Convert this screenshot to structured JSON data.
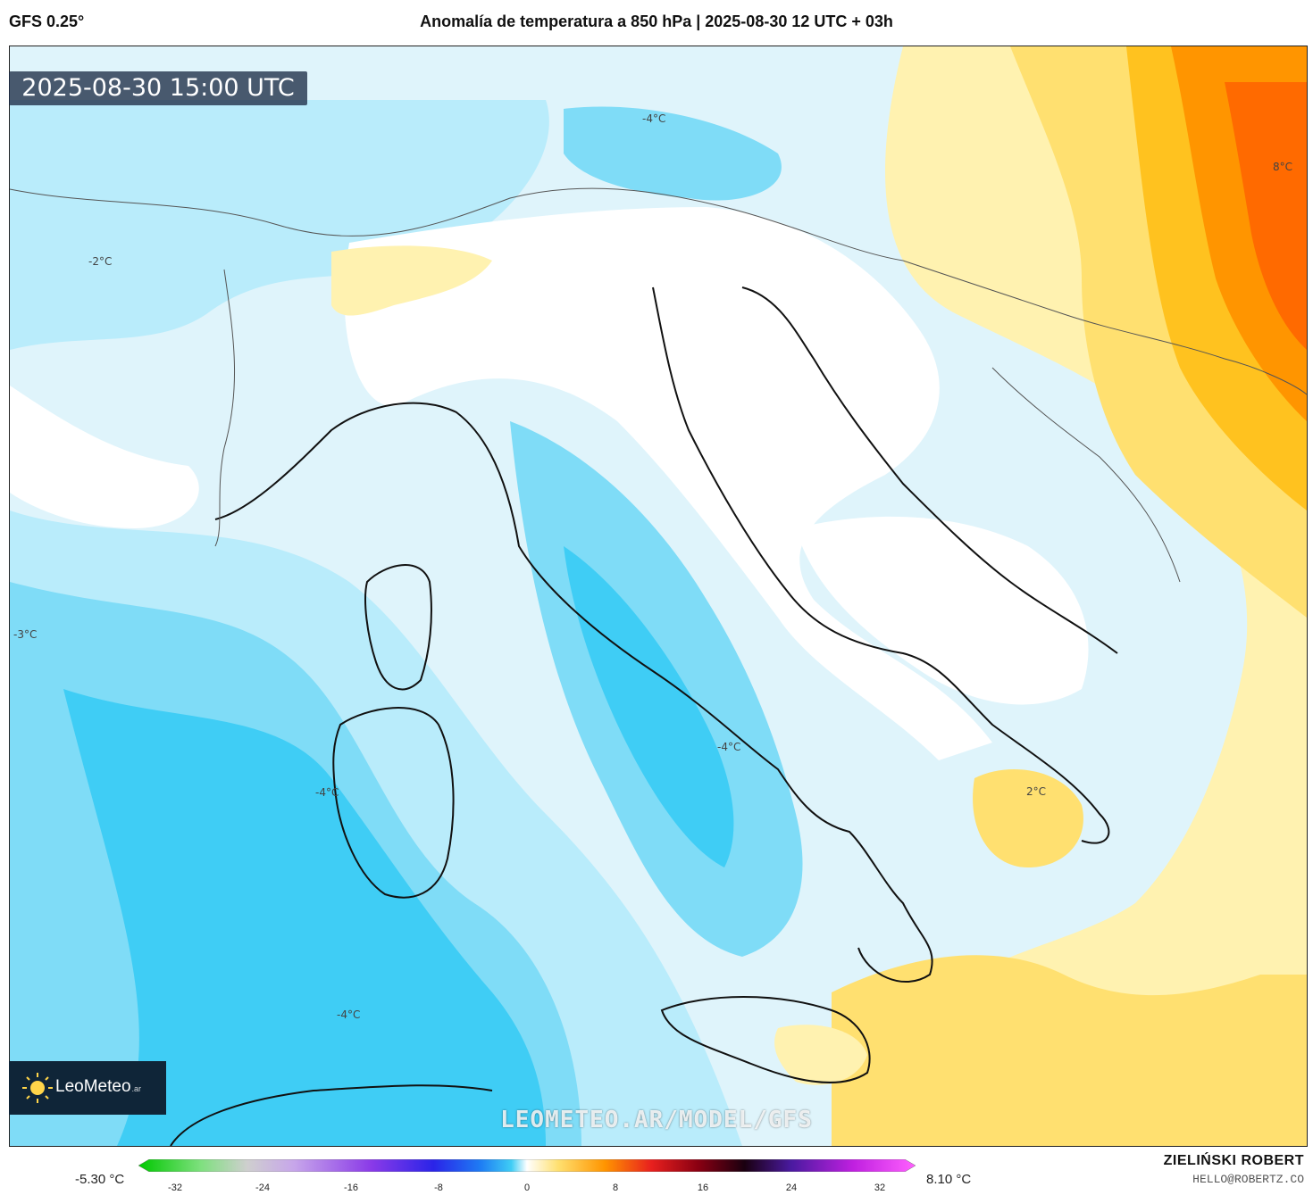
{
  "header": {
    "model": "GFS 0.25°",
    "title": "Anomalía de temperatura a 850 hPa | 2025-08-30 12 UTC + 03h"
  },
  "timestamp": "2025-08-30 15:00 UTC",
  "map": {
    "contour_labels": [
      "-4°C",
      "-2°C",
      "8°C",
      "-3°C",
      "-4°C",
      "-4°C",
      "2°C",
      "-4°C"
    ],
    "colors": {
      "sea_light": "#dff4fb",
      "cold_1": "#b9ecfb",
      "cold_2": "#7fdcf7",
      "cold_3": "#3fcdf5",
      "cold_4": "#13b8ee",
      "neutral": "#ffffff",
      "warm_1": "#fff2b0",
      "warm_2": "#ffe070",
      "warm_3": "#ffc21f",
      "warm_4": "#ff9500",
      "warm_5": "#ff6a00"
    }
  },
  "logo": {
    "name": "LeoMeteo",
    "suffix": ".ar"
  },
  "watermark": "LEOMETEO.AR/MODEL/GFS",
  "legend": {
    "min_label": "-5.30 °C",
    "max_label": "8.10 °C",
    "ticks": [
      "-32",
      "-24",
      "-16",
      "-8",
      "0",
      "8",
      "16",
      "24",
      "32"
    ]
  },
  "author": {
    "name": "ZIELIŃSKI ROBERT",
    "email": "HELLO@ROBERTZ.CO"
  }
}
